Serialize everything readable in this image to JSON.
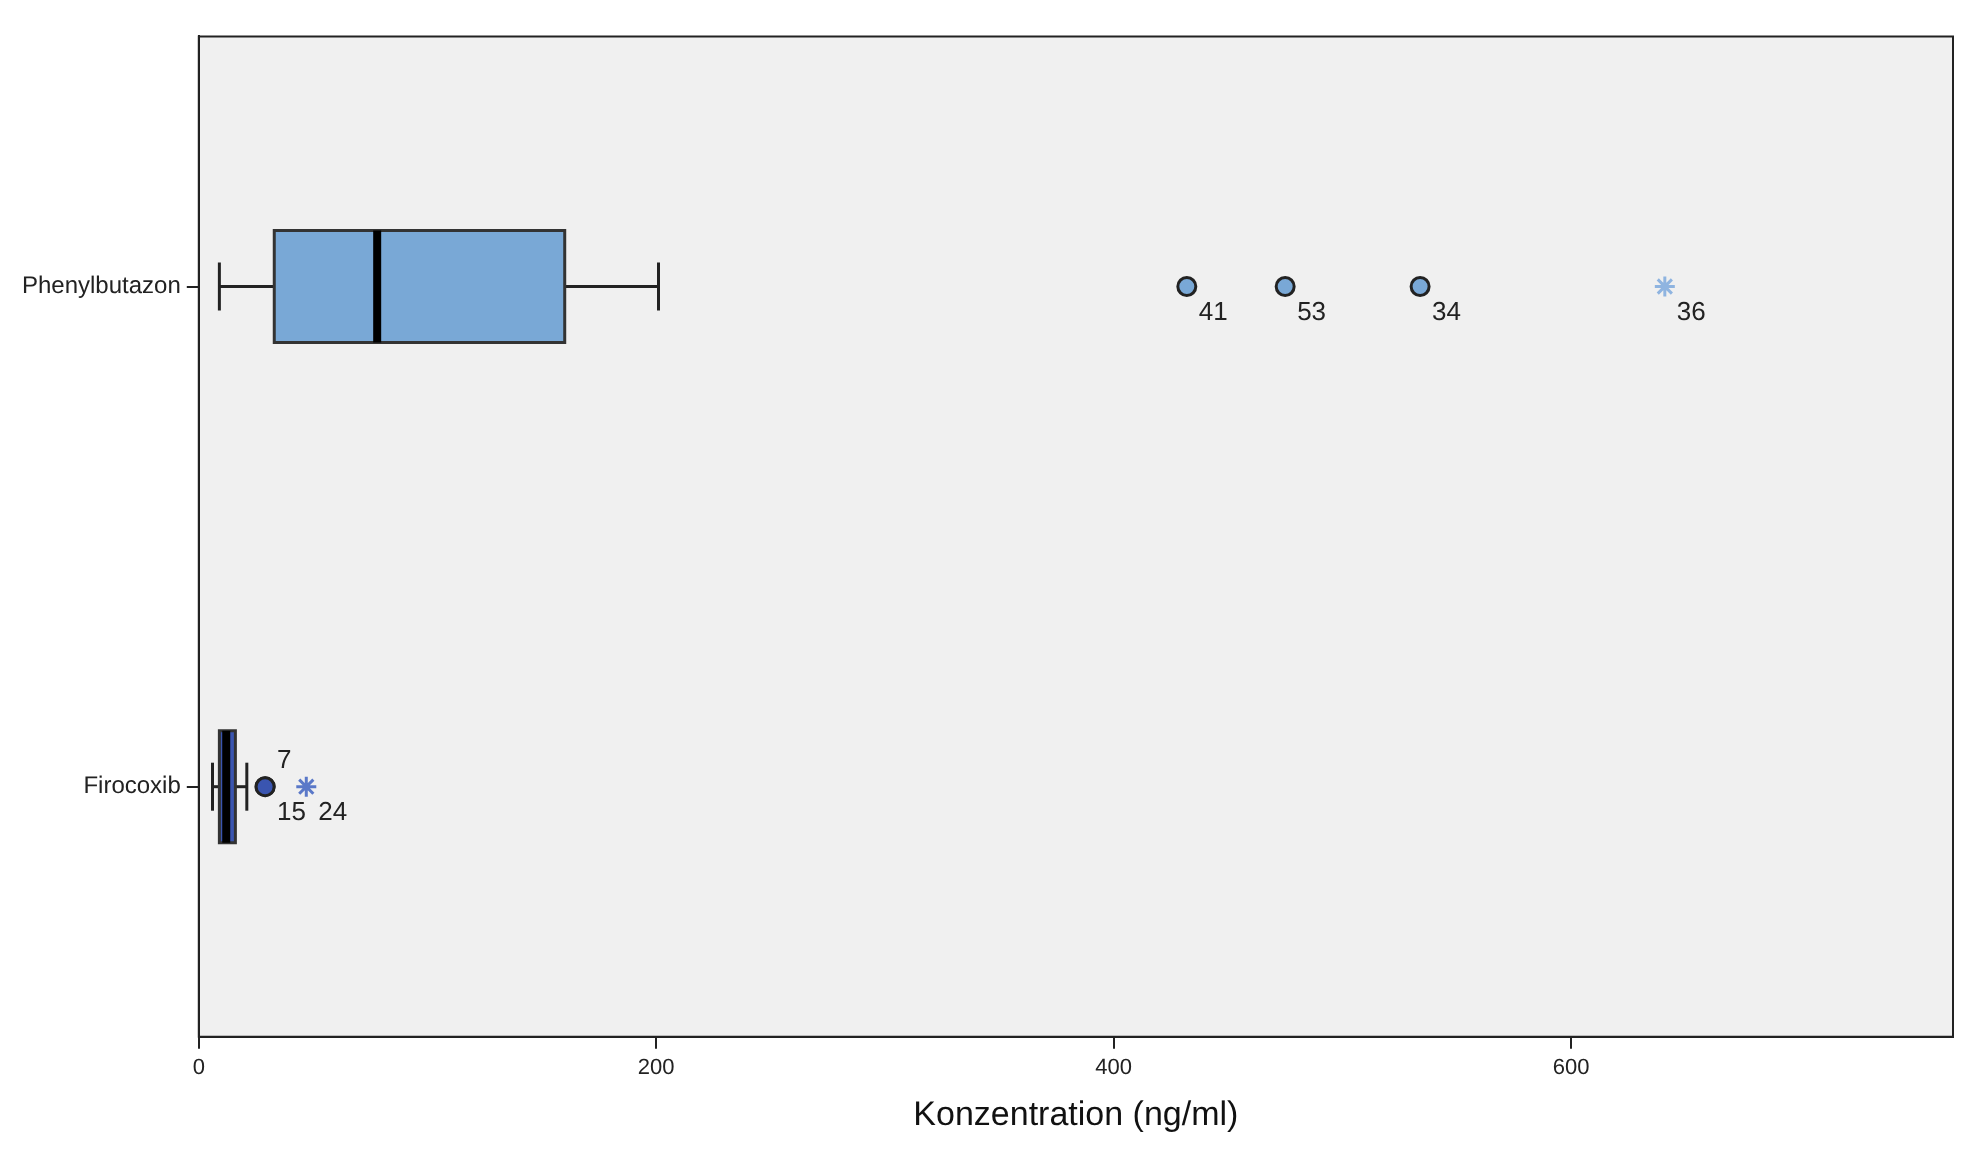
{
  "chart_data": {
    "type": "box",
    "orientation": "horizontal",
    "xlabel": "Konzentration (ng/ml)",
    "categories": [
      "Phenylbutazon",
      "Firocoxib"
    ],
    "xlim": [
      0,
      767
    ],
    "xticks": [
      0,
      200,
      400,
      600
    ],
    "grid": false,
    "legend": false,
    "series": [
      {
        "type": "box",
        "colors": [
          "#79a8d6",
          "#3a55b0"
        ],
        "boxes": [
          {
            "low": 9,
            "q1": 33,
            "median": 78,
            "q3": 160,
            "high": 201,
            "outliers": [
              432,
              475,
              534
            ]
          },
          {
            "low": 6,
            "q1": 9,
            "median": 12,
            "q3": 16,
            "high": 21,
            "outliers": [
              29,
              29
            ]
          }
        ]
      },
      {
        "type": "scatter",
        "marker": "cross",
        "x": [
          "Phenylbutazon",
          "Firocoxib"
        ],
        "values": [
          641,
          47
        ],
        "colors": [
          "#8fb4e0",
          "#5a78c8"
        ]
      }
    ],
    "annotations": [
      "41",
      "53",
      "34",
      "7",
      "15",
      "36",
      "24"
    ]
  }
}
